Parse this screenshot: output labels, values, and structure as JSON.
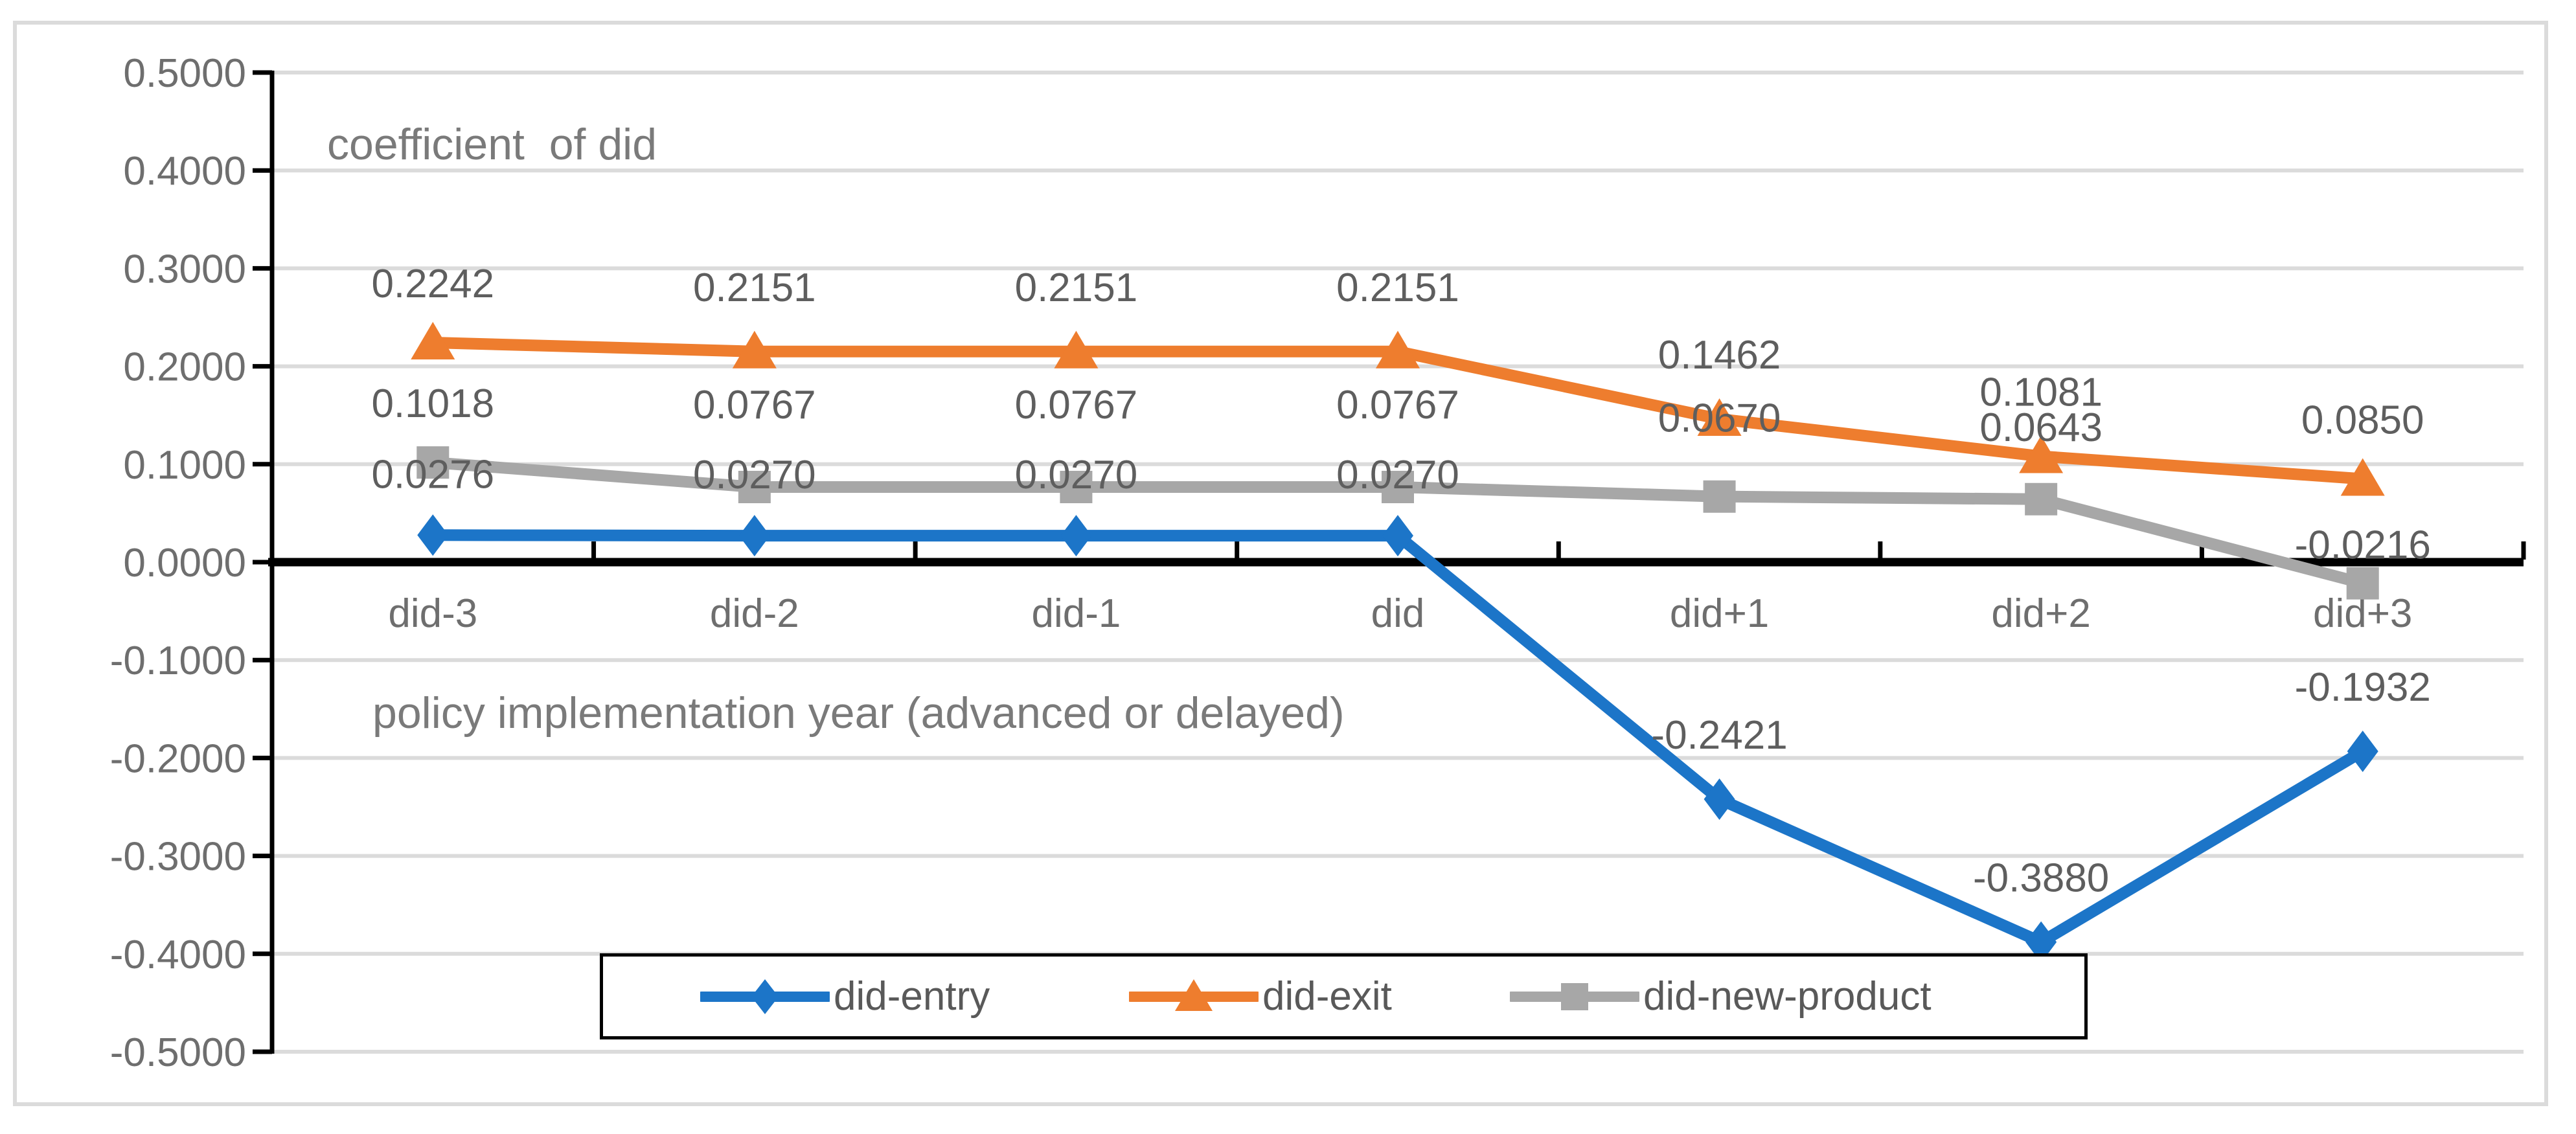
{
  "chart_data": {
    "type": "line",
    "title": "coefficient  of did",
    "x_axis_title": "policy implementation year (advanced or delayed)",
    "categories": [
      "did-3",
      "did-2",
      "did-1",
      "did",
      "did+1",
      "did+2",
      "did+3"
    ],
    "series": [
      {
        "name": "did-entry",
        "color": "#1C75C8",
        "marker": "diamond",
        "values": [
          0.0276,
          0.027,
          0.027,
          0.027,
          -0.2421,
          -0.388,
          -0.1932
        ],
        "labels": [
          "0.0276",
          "0.0270",
          "0.0270",
          "0.0270",
          "-0.2421",
          "-0.3880",
          "-0.1932"
        ]
      },
      {
        "name": "did-exit",
        "color": "#EE7D2E",
        "marker": "triangle",
        "values": [
          0.2242,
          0.2151,
          0.2151,
          0.2151,
          0.1462,
          0.1081,
          0.085
        ],
        "labels": [
          "0.2242",
          "0.2151",
          "0.2151",
          "0.2151",
          "0.1462",
          "0.1081",
          "0.0850"
        ]
      },
      {
        "name": "did-new-product",
        "color": "#A7A7A7",
        "marker": "square",
        "values": [
          0.1018,
          0.0767,
          0.0767,
          0.0767,
          0.067,
          0.0643,
          -0.0216
        ],
        "labels": [
          "0.1018",
          "0.0767",
          "0.0767",
          "0.0767",
          "0.0670",
          "0.0643",
          "-0.0216"
        ]
      }
    ],
    "y_axis": {
      "min": -0.5,
      "max": 0.5,
      "step": 0.1,
      "tick_labels": [
        "0.5000",
        "0.4000",
        "0.3000",
        "0.2000",
        "0.1000",
        "0.0000",
        "-0.1000",
        "-0.2000",
        "-0.3000",
        "-0.4000",
        "-0.5000"
      ]
    },
    "grid": true,
    "legend_position": "bottom-inside",
    "colors": {
      "gridline": "#DBDBDB",
      "axis": "#000000",
      "tick_label": "#6E6E6E",
      "data_label": "#5E5E5E",
      "title": "#7A7A7A",
      "legend_text": "#595959",
      "frame_border": "#DBDBDB"
    }
  }
}
